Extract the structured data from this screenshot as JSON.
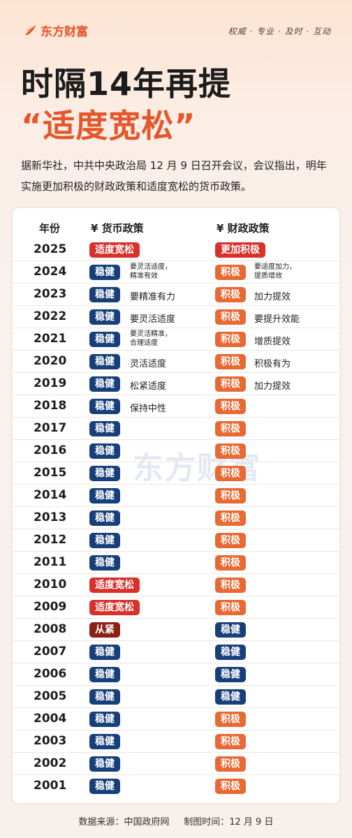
{
  "brand": {
    "name": "东方财富",
    "slogan": "权威 · 专业 · 及时 · 互动",
    "logo_icon": "flame-logo-icon",
    "accent": "#e5562b"
  },
  "title": {
    "line1": "时隔14年再提",
    "line2": "“适度宽松”"
  },
  "intro": "据新华社，中共中央政治局 12 月 9 日召开会议，会议指出，明年实施更加积极的财政政策和适度宽松的货币政策。",
  "watermark": "东方财富",
  "table": {
    "headers": {
      "year": "年份",
      "monetary": "¥ 货币政策",
      "fiscal": "¥ 财政政策"
    },
    "rows": [
      {
        "year": "2025",
        "monetary": "适度宽松",
        "monetary_color": "red",
        "monetary_note": "",
        "fiscal": "更加积极",
        "fiscal_color": "red",
        "fiscal_note": ""
      },
      {
        "year": "2024",
        "monetary": "稳健",
        "monetary_color": "navy",
        "monetary_note": "要灵活适度，\n精准有效",
        "fiscal": "积极",
        "fiscal_color": "orange",
        "fiscal_note": "要适度加力，\n提质增效"
      },
      {
        "year": "2023",
        "monetary": "稳健",
        "monetary_color": "navy",
        "monetary_note": "要精准有力",
        "fiscal": "积极",
        "fiscal_color": "orange",
        "fiscal_note": "加力提效"
      },
      {
        "year": "2022",
        "monetary": "稳健",
        "monetary_color": "navy",
        "monetary_note": "要灵活适度",
        "fiscal": "积极",
        "fiscal_color": "orange",
        "fiscal_note": "要提升效能"
      },
      {
        "year": "2021",
        "monetary": "稳健",
        "monetary_color": "navy",
        "monetary_note": "要灵活精准，\n合理适度",
        "fiscal": "积极",
        "fiscal_color": "orange",
        "fiscal_note": "增质提效"
      },
      {
        "year": "2020",
        "monetary": "稳健",
        "monetary_color": "navy",
        "monetary_note": "灵活适度",
        "fiscal": "积极",
        "fiscal_color": "orange",
        "fiscal_note": "积极有为"
      },
      {
        "year": "2019",
        "monetary": "稳健",
        "monetary_color": "navy",
        "monetary_note": "松紧适度",
        "fiscal": "积极",
        "fiscal_color": "orange",
        "fiscal_note": "加力提效"
      },
      {
        "year": "2018",
        "monetary": "稳健",
        "monetary_color": "navy",
        "monetary_note": "保持中性",
        "fiscal": "积极",
        "fiscal_color": "orange",
        "fiscal_note": ""
      },
      {
        "year": "2017",
        "monetary": "稳健",
        "monetary_color": "navy",
        "monetary_note": "",
        "fiscal": "积极",
        "fiscal_color": "orange",
        "fiscal_note": ""
      },
      {
        "year": "2016",
        "monetary": "稳健",
        "monetary_color": "navy",
        "monetary_note": "",
        "fiscal": "积极",
        "fiscal_color": "orange",
        "fiscal_note": ""
      },
      {
        "year": "2015",
        "monetary": "稳健",
        "monetary_color": "navy",
        "monetary_note": "",
        "fiscal": "积极",
        "fiscal_color": "orange",
        "fiscal_note": ""
      },
      {
        "year": "2014",
        "monetary": "稳健",
        "monetary_color": "navy",
        "monetary_note": "",
        "fiscal": "积极",
        "fiscal_color": "orange",
        "fiscal_note": ""
      },
      {
        "year": "2013",
        "monetary": "稳健",
        "monetary_color": "navy",
        "monetary_note": "",
        "fiscal": "积极",
        "fiscal_color": "orange",
        "fiscal_note": ""
      },
      {
        "year": "2012",
        "monetary": "稳健",
        "monetary_color": "navy",
        "monetary_note": "",
        "fiscal": "积极",
        "fiscal_color": "orange",
        "fiscal_note": ""
      },
      {
        "year": "2011",
        "monetary": "稳健",
        "monetary_color": "navy",
        "monetary_note": "",
        "fiscal": "积极",
        "fiscal_color": "orange",
        "fiscal_note": ""
      },
      {
        "year": "2010",
        "monetary": "适度宽松",
        "monetary_color": "red",
        "monetary_note": "",
        "fiscal": "积极",
        "fiscal_color": "orange",
        "fiscal_note": ""
      },
      {
        "year": "2009",
        "monetary": "适度宽松",
        "monetary_color": "red",
        "monetary_note": "",
        "fiscal": "积极",
        "fiscal_color": "orange",
        "fiscal_note": ""
      },
      {
        "year": "2008",
        "monetary": "从紧",
        "monetary_color": "darkred",
        "monetary_note": "",
        "fiscal": "稳健",
        "fiscal_color": "navy",
        "fiscal_note": ""
      },
      {
        "year": "2007",
        "monetary": "稳健",
        "monetary_color": "navy",
        "monetary_note": "",
        "fiscal": "稳健",
        "fiscal_color": "navy",
        "fiscal_note": ""
      },
      {
        "year": "2006",
        "monetary": "稳健",
        "monetary_color": "navy",
        "monetary_note": "",
        "fiscal": "稳健",
        "fiscal_color": "navy",
        "fiscal_note": ""
      },
      {
        "year": "2005",
        "monetary": "稳健",
        "monetary_color": "navy",
        "monetary_note": "",
        "fiscal": "稳健",
        "fiscal_color": "navy",
        "fiscal_note": ""
      },
      {
        "year": "2004",
        "monetary": "稳健",
        "monetary_color": "navy",
        "monetary_note": "",
        "fiscal": "积极",
        "fiscal_color": "orange",
        "fiscal_note": ""
      },
      {
        "year": "2003",
        "monetary": "稳健",
        "monetary_color": "navy",
        "monetary_note": "",
        "fiscal": "积极",
        "fiscal_color": "orange",
        "fiscal_note": ""
      },
      {
        "year": "2002",
        "monetary": "稳健",
        "monetary_color": "navy",
        "monetary_note": "",
        "fiscal": "积极",
        "fiscal_color": "orange",
        "fiscal_note": ""
      },
      {
        "year": "2001",
        "monetary": "稳健",
        "monetary_color": "navy",
        "monetary_note": "",
        "fiscal": "积极",
        "fiscal_color": "orange",
        "fiscal_note": ""
      }
    ]
  },
  "footer": {
    "source": "数据来源：中国政府网",
    "date": "制图时间：12 月 9 日"
  },
  "colors": {
    "navy": "#173f79",
    "red": "#d8312b",
    "orange": "#e76a35",
    "darkred": "#8b2016"
  }
}
